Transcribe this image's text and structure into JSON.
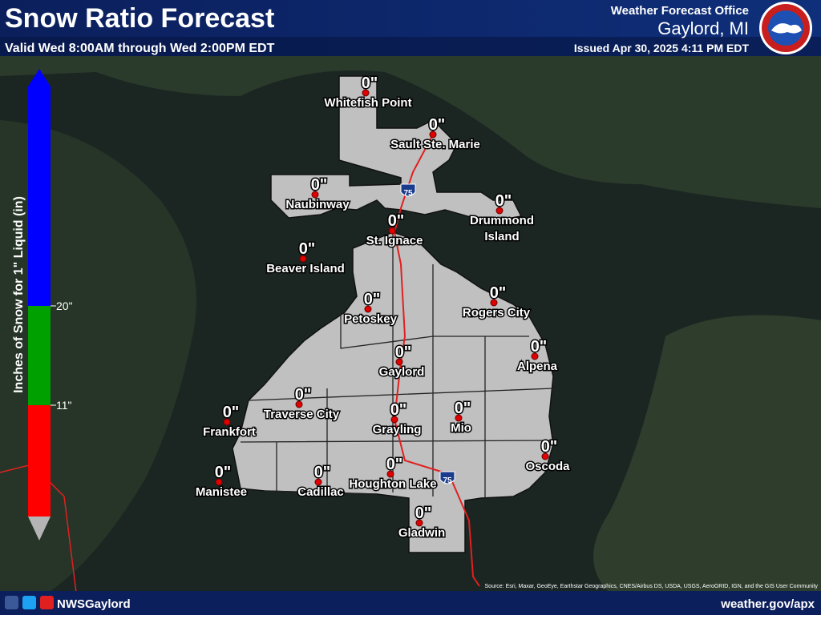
{
  "header": {
    "title": "Snow Ratio Forecast",
    "subtitle": "Valid Wed 8:00AM through Wed 2:00PM EDT",
    "office": "Weather Forecast Office",
    "location": "Gaylord, MI",
    "issued": "Issued Apr 30, 2025 4:11 PM EDT"
  },
  "legend": {
    "label": "Inches of Snow for 1\" Liquid (in)",
    "ticks": [
      "20\"",
      "11\""
    ]
  },
  "cities": [
    {
      "name": [
        "Whitefish Point"
      ],
      "amount": "0\""
    },
    {
      "name": [
        "Sault Ste. Marie"
      ],
      "amount": "0\""
    },
    {
      "name": [
        "Naubinway"
      ],
      "amount": "0\""
    },
    {
      "name": [
        "St. Ignace"
      ],
      "amount": "0\""
    },
    {
      "name": [
        "Drummond",
        "Island"
      ],
      "amount": "0\""
    },
    {
      "name": [
        "Beaver Island"
      ],
      "amount": "0\""
    },
    {
      "name": [
        "Petoskey"
      ],
      "amount": "0\""
    },
    {
      "name": [
        "Rogers City"
      ],
      "amount": "0\""
    },
    {
      "name": [
        "Gaylord"
      ],
      "amount": "0\""
    },
    {
      "name": [
        "Alpena"
      ],
      "amount": "0\""
    },
    {
      "name": [
        "Traverse City"
      ],
      "amount": "0\""
    },
    {
      "name": [
        "Frankfort"
      ],
      "amount": "0\""
    },
    {
      "name": [
        "Grayling"
      ],
      "amount": "0\""
    },
    {
      "name": [
        "Mio"
      ],
      "amount": "0\""
    },
    {
      "name": [
        "Oscoda"
      ],
      "amount": "0\""
    },
    {
      "name": [
        "Manistee"
      ],
      "amount": "0\""
    },
    {
      "name": [
        "Cadillac"
      ],
      "amount": "0\""
    },
    {
      "name": [
        "Houghton Lake"
      ],
      "amount": "0\""
    },
    {
      "name": [
        "Gladwin"
      ],
      "amount": "0\""
    }
  ],
  "footer": {
    "handle": "NWSGaylord",
    "url": "weather.gov/apx",
    "source": "Source: Esri, Maxar, GeoEye, Earthstar Geographics, CNES/Airbus DS, USDA, USGS, AeroGRID, IGN, and the GIS User Community"
  }
}
